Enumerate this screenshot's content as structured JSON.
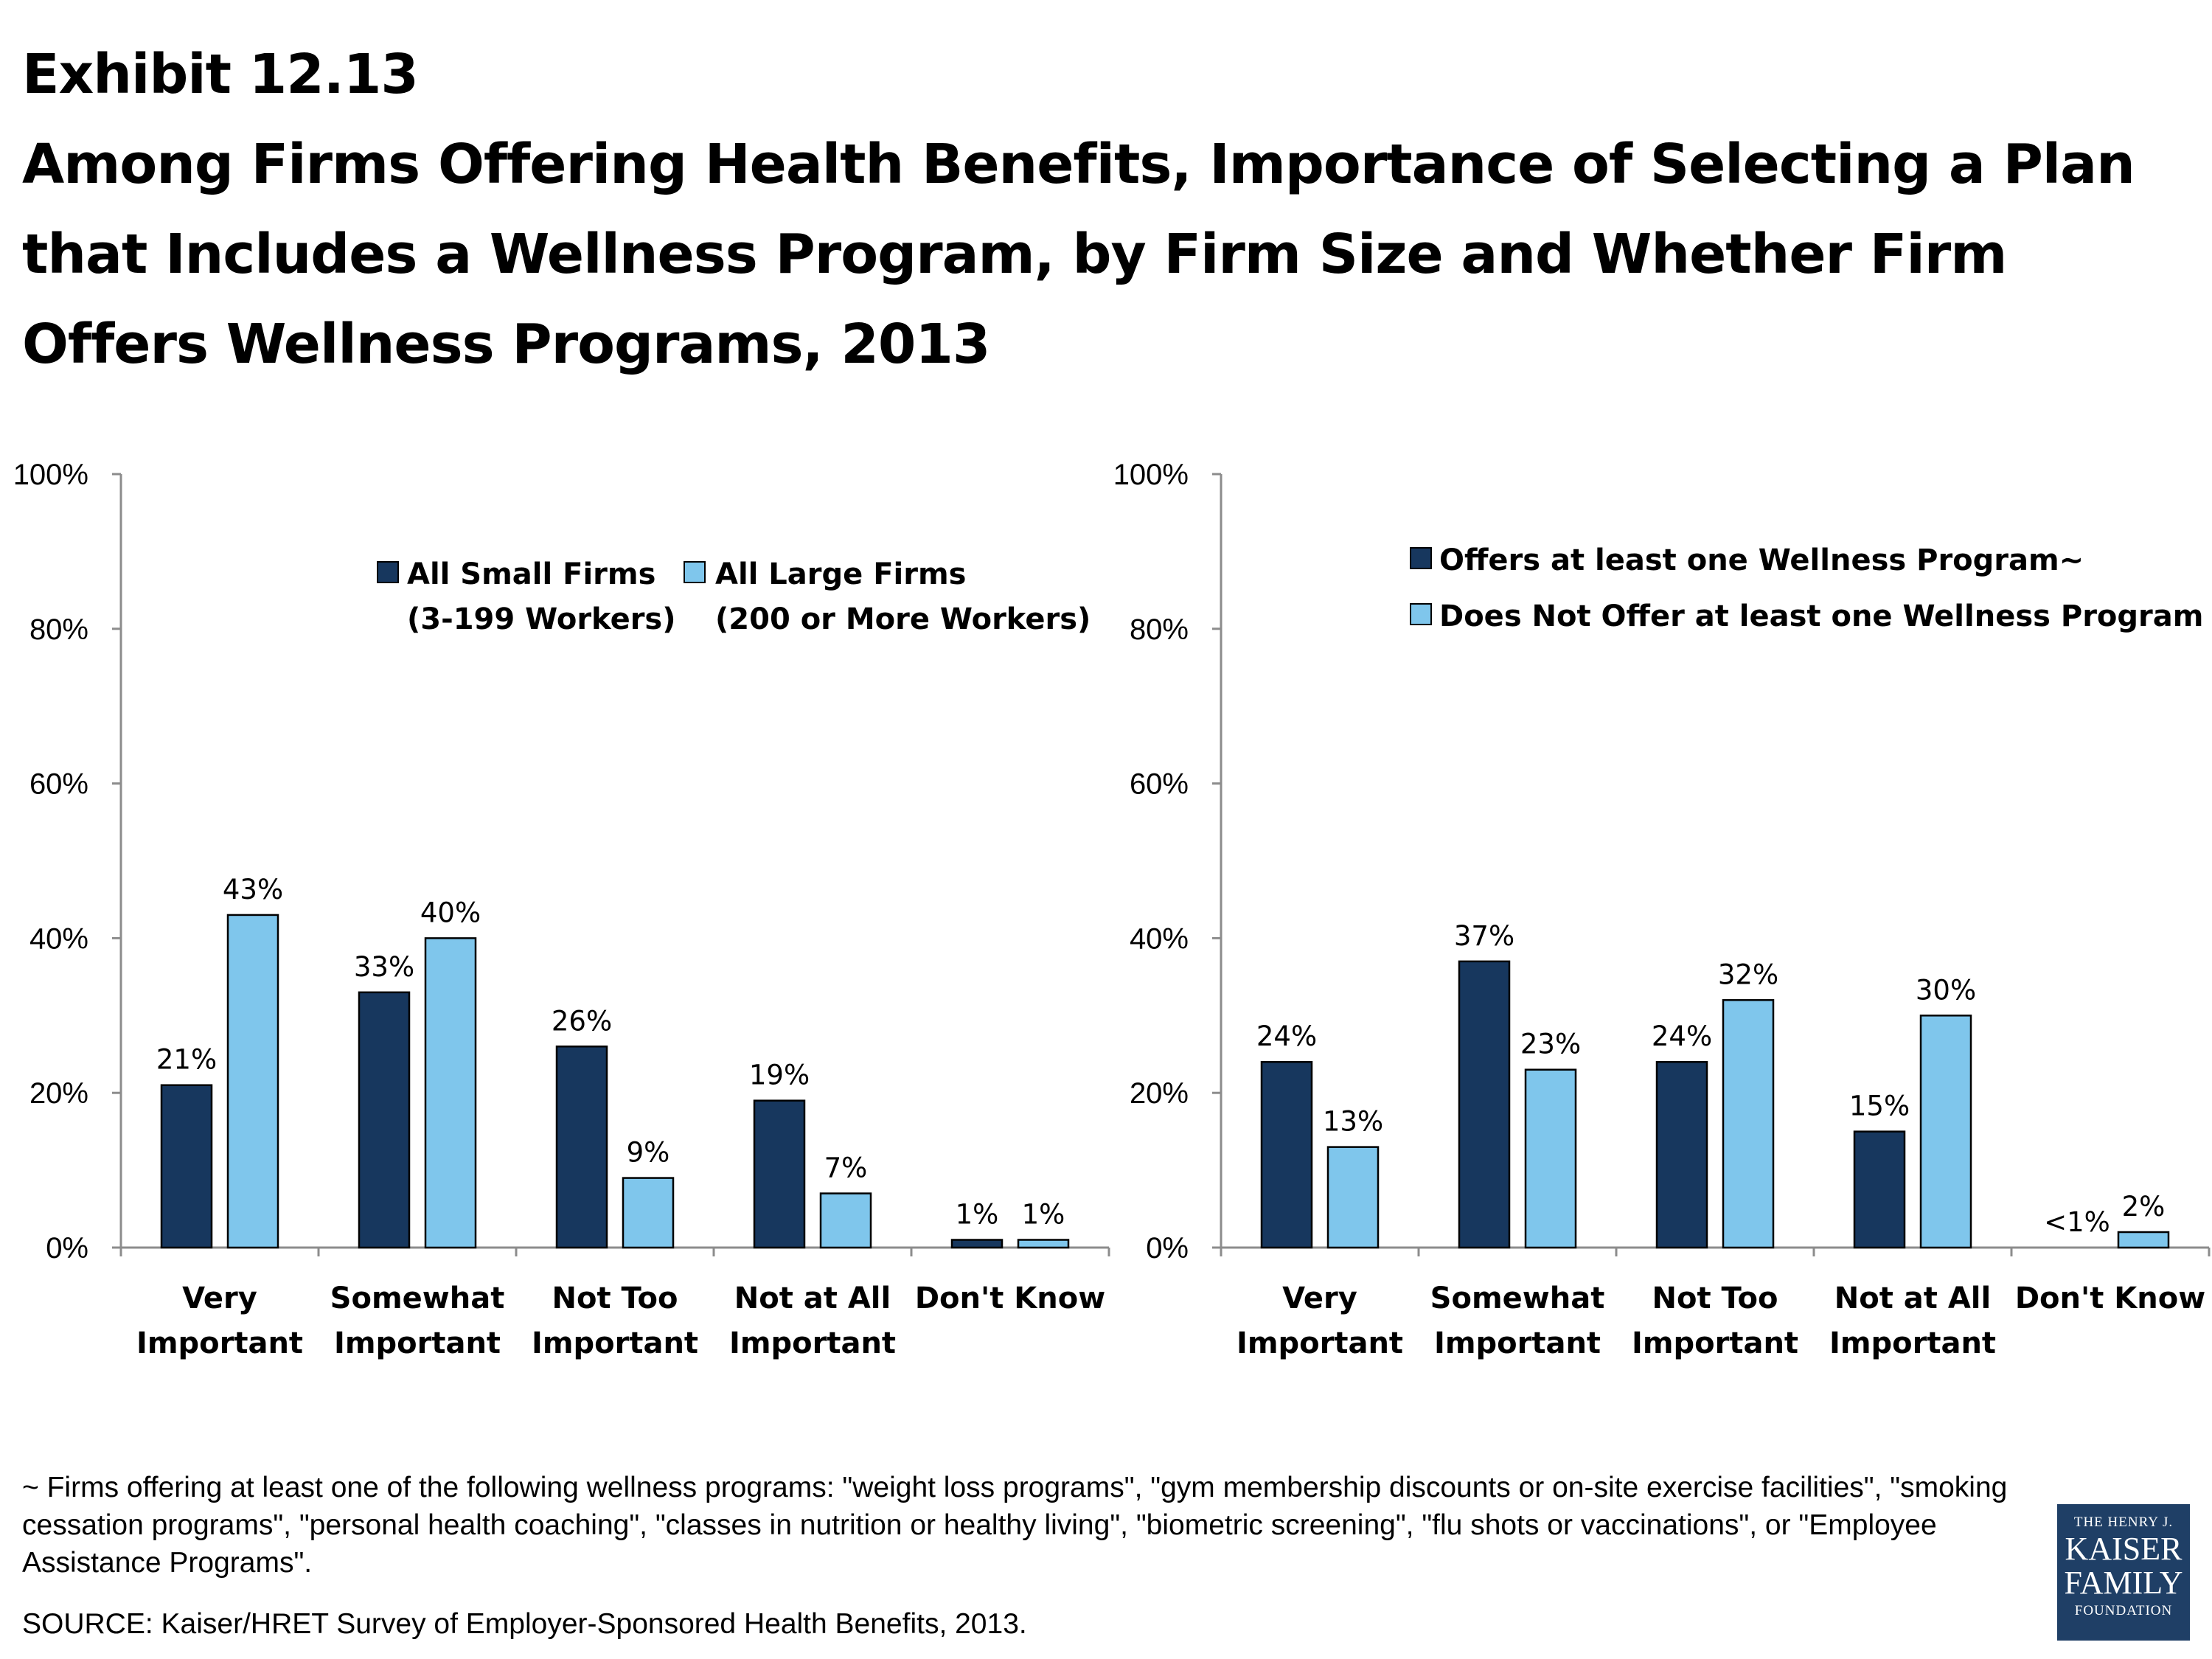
{
  "header": {
    "title_lines": [
      "Exhibit 12.13",
      "Among Firms Offering Health Benefits, Importance of Selecting a Plan",
      "that Includes a Wellness Program, by Firm Size and Whether Firm",
      "Offers Wellness Programs, 2013"
    ]
  },
  "chart_data": [
    {
      "type": "bar",
      "categories": [
        [
          "Very",
          "Important"
        ],
        [
          "Somewhat",
          "Important"
        ],
        [
          "Not Too",
          "Important"
        ],
        [
          "Not at All",
          "Important"
        ],
        [
          "Don't Know"
        ]
      ],
      "ylim": [
        0,
        100
      ],
      "yticks": [
        0,
        20,
        40,
        60,
        80,
        100
      ],
      "ytick_labels": [
        "0%",
        "20%",
        "40%",
        "60%",
        "80%",
        "100%"
      ],
      "grid": false,
      "legend_position": "top",
      "series": [
        {
          "name": "All Small Firms",
          "name_line2": "(3-199 Workers)",
          "color": "#17375e",
          "values": [
            21,
            33,
            26,
            19,
            1
          ],
          "labels": [
            "21%",
            "33%",
            "26%",
            "19%",
            "1%"
          ]
        },
        {
          "name": "All Large Firms",
          "name_line2": "(200 or More Workers)",
          "color": "#7fc6ec",
          "values": [
            43,
            40,
            9,
            7,
            1
          ],
          "labels": [
            "43%",
            "40%",
            "9%",
            "7%",
            "1%"
          ]
        }
      ]
    },
    {
      "type": "bar",
      "categories": [
        [
          "Very",
          "Important"
        ],
        [
          "Somewhat",
          "Important"
        ],
        [
          "Not Too",
          "Important"
        ],
        [
          "Not at All",
          "Important"
        ],
        [
          "Don't Know"
        ]
      ],
      "ylim": [
        0,
        100
      ],
      "yticks": [
        0,
        20,
        40,
        60,
        80,
        100
      ],
      "ytick_labels": [
        "0%",
        "20%",
        "40%",
        "60%",
        "80%",
        "100%"
      ],
      "grid": false,
      "legend_position": "top-right",
      "series": [
        {
          "name": "Offers at least one Wellness Program~",
          "color": "#17375e",
          "values": [
            24,
            37,
            24,
            15,
            0
          ],
          "labels": [
            "24%",
            "37%",
            "24%",
            "15%",
            "<1%"
          ]
        },
        {
          "name": "Does Not Offer at least one Wellness Program",
          "color": "#7fc6ec",
          "values": [
            13,
            23,
            32,
            30,
            2
          ],
          "labels": [
            "13%",
            "23%",
            "32%",
            "30%",
            "2%"
          ]
        }
      ]
    }
  ],
  "footnote": "~ Firms offering at least one of the following wellness programs: \"weight loss programs\", \"gym membership discounts or on-site exercise facilities\", \"smoking cessation programs\", \"personal health coaching\", \"classes in nutrition or healthy living\", \"biometric screening\", \"flu shots or vaccinations\", or \"Employee Assistance Programs\".",
  "source": "SOURCE: Kaiser/HRET Survey of Employer-Sponsored Health Benefits, 2013.",
  "logo": {
    "line1": "THE HENRY J.",
    "line2": "KAISER",
    "line3": "FAMILY",
    "line4": "FOUNDATION"
  }
}
